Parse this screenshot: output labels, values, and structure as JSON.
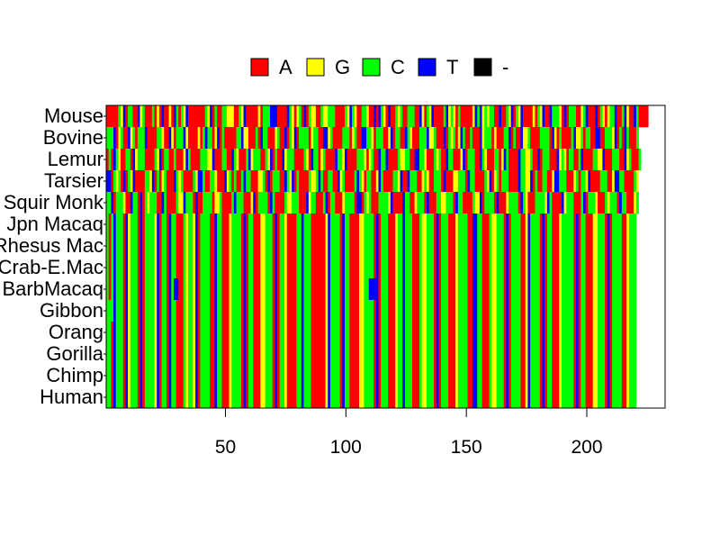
{
  "chart_data": {
    "type": "heatmap",
    "title": "",
    "xlabel": "",
    "ylabel": "",
    "xlim": [
      1,
      232
    ],
    "x_ticks": [
      50,
      100,
      150,
      200
    ],
    "x_tick_labels": [
      "50",
      "100",
      "150",
      "200"
    ],
    "rows": [
      "Mouse",
      "Bovine",
      "Lemur",
      "Tarsier",
      "Squir Monk",
      "Jpn Macaq",
      "Rhesus Mac",
      "Crab-E.Mac",
      "BarbMacaq",
      "Gibbon",
      "Orang",
      "Gorilla",
      "Chimp",
      "Human"
    ],
    "legend_position": "top",
    "legend": [
      {
        "label": "A",
        "color": "#ff0000"
      },
      {
        "label": "G",
        "color": "#ffff00"
      },
      {
        "label": "C",
        "color": "#00ff00"
      },
      {
        "label": "T",
        "color": "#0000ff"
      },
      {
        "label": "-",
        "color": "#000000"
      }
    ],
    "sequence_length": 232,
    "sequences": {
      "Mouse": "AAAAACGTACCAATGCAAACAGATAAGATCACGTAAAAAAACGTACAACCGGGAACGTAAAAAGACCCTTTAAAATCGAGCATACGGAACGGCCCAAAACGTCGAACCGAATATCGATAACGCAACCCAATGACGTAAAACTGCGACAAAAAGTCTGCGCCAATAACGTACGTAAAAGACGTAATCCCGATACCCAAGCTAAATACGAGCCTAACTGAATCAAAA",
      "Bovine": "CCCTAGCAATGCACCCTAAAACCGAATGACCCTGAAAAGACTCCAGTACAAAAACCTGGAAACATCCAAAGCAATACGTACCCCAGCCAATTGCAAAACCCAGCAATTCCGACCCAAGTACCAATCGAAACCCTGGCAAATACGCAGTCAACAAATGCCCAGAAACCTACAATGGCAAAACCCCATGACAAAACTGGCACCAATTAACCCGTACATCAAAC",
      "Lemur": "ACATCGAACCATGCCCAAAACGTACCAACAAAGTCAAAACCCGGTAAACCAATCGAAACTGCCCAACGTACAATGCCCAAAACGATCCAGCAAAATCCGTAAAACCCGAGCAATCCTAAAACGGCCAATTCCGAAACGCAATCCAAAGTACCCAATCGAAACCAGTCAAAATCCGGCAATACCCAAATGCGACCAACTAAAACCGGTAAACCCAATGCAAAC",
      "Tarsier": "TTACGCATACGTAAAACCGTACAGCAAATCGCAAAACGTTCAACCGAAATGCACAACTCCAAAGGCATACCCAATCGTACAAAACGGCTCAACCAATGCAAAACTCGACCAAGTCAAAACCGTAATCCCAAGCGAACCCATAAAGGCCCATCCAAAACGTAGCACCCAAAATCCGGTACAACCAAGTTCCCAAAGCACCGTAAAACCCAAGTTCCAAAACG",
      "Squir Monk": "CCTACCCGAATCCATACGCCCAATCAAAACGGTCCCATAACCCCAGGCAAAACTCCCAAAGTACCCCATCAAAACGGCCCAAATGCCAAACTACCAAAGCCCCATTACGCAAACCCCGTAAAATCCAAGCCCATAAACCGGCCCATCCAAAACGGTACCCCATAAAGCCCCATCGAAACCCCGTCAAAATGCCCAAACTACCCGAAACGCCCATCCAAAGC",
      "Jpn Macaq": "CACTCCCATGCCCATACCCCGTACCATCCAAACGCCGTACCCCAATCCAAAGCCCCATACCAAAGGCCCATACCGAAAACCTCCCAAAAAAGTCCCCATCCAAAAGGCCCCATACCCAAAGCCTCCCAAACGGCCCATACCCAAAGCCCCAATTCCAAACGGCCCATACCCCAAGTCCCCATACCAAAGCCCCCATACCAAAGGCCCATACCCCAAGCCC",
      "Rhesus Mac": "CACTCCCATGCCCATACCCCGTACCATCCAAACGCCGTACCCCAATCCAAAGCCCCATACCAAAGGCCCATACCGAAAACCTCCCAAAAAAGTCCCCATCCAAAAGGCCCCATACCCAAAGCCTCCCAAACGGCCCATACCCAAAGCCCCAATTCCAAACGGCCCATACCCCAAGTCCCCATACCAAAGCCCCCATACCAAAGGCCCATACCCCAAGCCC",
      "Crab-E.Mac": "CACTCCCATGCCCATACCCCGTACCATCCAAACGCCGTACCCCAATCCAAAGCCCCATACCAAAGGCCCATACCGAAAACCTCCCAAAAAAGTCCCCATCCAAAAGGCCCCATACCCAAAGCCTCCCAAACGGCCCATACCCAAAGCCCCAATTCCAAACGGCCCATACCCCAAGTCCCCATACCAAAGCCCCCATACCAAAGGCCCATACCCCAAGCCC",
      "BarbMacaq": "CACTCCCATGCCCATACCCCGTACCATCTTAACGCCGTACCCCAATCCAAAGCCCCATACCAAAGGCCCATACCGAAAACCTCCCAAAAAAGTCCCCATCCAAAAGGCCTTTTACCCAAAGCCTCCCAAACGGCCCATACCCAAAGCCCCAATTCCAAACGGCCCATACCCCAAGTCCCCATACCAAAGCCCCCATACCAAAGGCCCATACCCCAAGCCC",
      "Gibbon": "CCCTCCCATGCCCATACCCCGTACCATCCAAACGCCGTACCCCAATCCAAAGCCCCATACCAAAGGCCCATACCGAAAACCTCCCAAAAAAGTCCCCATCCAAAAGGCCCCATACCCAAAGCCTCCCAAACGGCCCATACCCAAAGCCCCAATTCCAAACGGCCCATACCCCAAGTCCCCATACCAAAGCCCCCATACCAAAGGCCCATACCCCAAGCCC",
      "Orang": "CCATCCCATGCCCATACCCCGTACCATCCAAACGCCGTACCCCAATCCAAAGCCCCATACCAAAGGCCCATACCGAAAACCTCCCAAAAAAGTCCCCATCCAAAAGGCCCCATACCCAAAGCCTCCCAAACGGCCCATACCCAAAGCCCCAATTCCAAACGGCCCATACCCCAAGTCCCCATACCAAAGCCCCCATACCAAAGGCCCATACCCCAAGCCC",
      "Gorilla": "CCATCCCATGCCCATACCCCGTACCATCCAAACGCCGTACCCCAATCCAAAGCCCCATACCAAAGGCCCATACCGAAAACCTCCCAAAAAAGTCCCCATCCAAAAGGCCCCATACCCAAAGCCTCCCAAACGGCCCATACCCAAAGCCCCAATTCCAAACGGCCCATACCCCAAGTCCCCATACCAAAGCCCCCATACCAAAGGCCCATACCCCAAGCCC",
      "Chimp": "CCATCCCATGCCCATACCCCGTACCATCCAAACGCCGTACCCCAATCCAAAGCCCCATACCAAAGGCCCATACCGAAAACCTCCCAAAAAAGTCCCCATCCAAAAGGCCCCATACCCAAAGCCTCCCAAACGGCCCATACCCAAAGCCCCAATTCCAAACGGCCCATACCCCAAGTCCCCATACCAAAGCCCCCATACCAAAGGCCCATACCCCAAGCCC",
      "Human": "CCATCCCATGCCCATACCCCGTACCATCCAAACGCCGTACCCCAATCCAAAGCCCCATACCAAAGGCCCATACCGAAAACCTCCCAAAAAAGTCCCCATCCAAAAGGCCCCATACCCAAAGCCTCCCAAACGGCCCATACCCAAAGCCCCAATTCCAAACGGCCCATACCCCAAGTCCCCATACCAAAGCCCCCATACCAAAGGCCCATACCCCAAGCCC"
    }
  }
}
